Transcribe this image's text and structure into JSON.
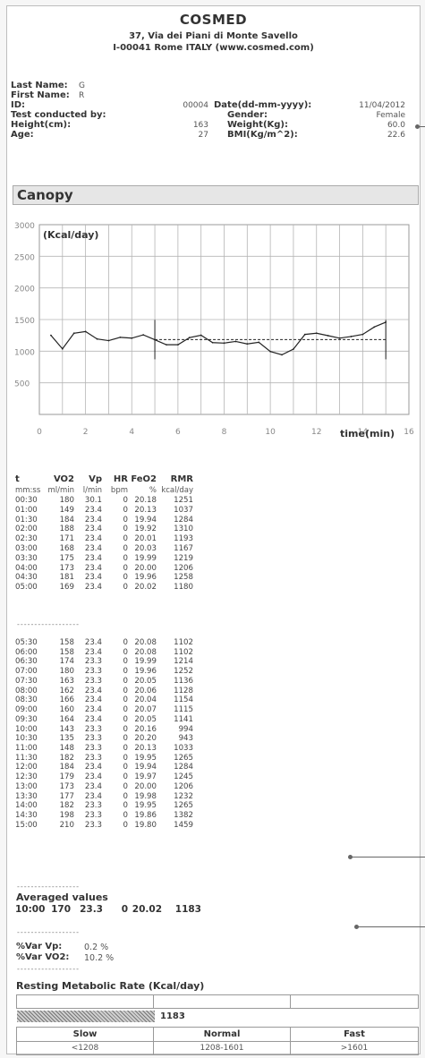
{
  "header": {
    "brand": "COSMED",
    "address_line1": "37, Via dei Piani di Monte Savello",
    "address_line2": "I-00041 Rome ITALY (www.cosmed.com)"
  },
  "patient": {
    "last_name_label": "Last Name:",
    "last_name": "G",
    "first_name_label": "First Name:",
    "first_name": "R",
    "id_label": "ID:",
    "id": "00004",
    "test_by_label": "Test conducted by:",
    "height_label": "Height(cm):",
    "height": "163",
    "age_label": "Age:",
    "age": "27",
    "date_label": "Date(dd-mm-yyyy):",
    "date": "11/04/2012",
    "gender_label": "Gender:",
    "gender": "Female",
    "weight_label": "Weight(Kg):",
    "weight": "60.0",
    "bmi_label": "BMI(Kg/m^2):",
    "bmi": "22.6"
  },
  "section_title": "Canopy",
  "chart_data": {
    "type": "line",
    "ylabel": "(Kcal/day)",
    "xlabel": "time(min)",
    "ylim": [
      0,
      3000
    ],
    "xlim": [
      0,
      16
    ],
    "yticks": [
      "3000",
      "2500",
      "2000",
      "1500",
      "1000",
      "500"
    ],
    "xticks": [
      "0",
      "2",
      "4",
      "6",
      "8",
      "10",
      "12",
      "14",
      "16"
    ],
    "grid": true,
    "series": [
      {
        "x": [
          0.5,
          1,
          1.5,
          2,
          2.5,
          3,
          3.5,
          4,
          4.5,
          5,
          5.5,
          6,
          6.5,
          7,
          7.5,
          8,
          8.5,
          9,
          9.5,
          10,
          10.5,
          11,
          11.5,
          12,
          12.5,
          13,
          13.5,
          14,
          14.5,
          15
        ],
        "values": [
          1251,
          1037,
          1284,
          1310,
          1193,
          1167,
          1219,
          1206,
          1258,
          1180,
          1102,
          1102,
          1214,
          1252,
          1136,
          1128,
          1154,
          1115,
          1141,
          994,
          943,
          1033,
          1265,
          1284,
          1245,
          1206,
          1232,
          1265,
          1382,
          1459
        ]
      }
    ],
    "average_line": {
      "x_start": 5,
      "x_end": 15,
      "value": 1183
    }
  },
  "table": {
    "headers": [
      "t",
      "VO2",
      "Vp",
      "HR",
      "FeO2",
      "RMR"
    ],
    "units": [
      "mm:ss",
      "ml/min",
      "l/min",
      "bpm",
      "%",
      "kcal/day"
    ],
    "separator": "------------------",
    "rows": [
      [
        "00:30",
        "180",
        "30.1",
        "0",
        "20.18",
        "1251"
      ],
      [
        "01:00",
        "149",
        "23.4",
        "0",
        "20.13",
        "1037"
      ],
      [
        "01:30",
        "184",
        "23.4",
        "0",
        "19.94",
        "1284"
      ],
      [
        "02:00",
        "188",
        "23.4",
        "0",
        "19.92",
        "1310"
      ],
      [
        "02:30",
        "171",
        "23.4",
        "0",
        "20.01",
        "1193"
      ],
      [
        "03:00",
        "168",
        "23.4",
        "0",
        "20.03",
        "1167"
      ],
      [
        "03:30",
        "175",
        "23.4",
        "0",
        "19.99",
        "1219"
      ],
      [
        "04:00",
        "173",
        "23.4",
        "0",
        "20.00",
        "1206"
      ],
      [
        "04:30",
        "181",
        "23.4",
        "0",
        "19.96",
        "1258"
      ],
      [
        "05:00",
        "169",
        "23.4",
        "0",
        "20.02",
        "1180"
      ],
      [
        "05:30",
        "158",
        "23.4",
        "0",
        "20.08",
        "1102"
      ],
      [
        "06:00",
        "158",
        "23.4",
        "0",
        "20.08",
        "1102"
      ],
      [
        "06:30",
        "174",
        "23.3",
        "0",
        "19.99",
        "1214"
      ],
      [
        "07:00",
        "180",
        "23.3",
        "0",
        "19.96",
        "1252"
      ],
      [
        "07:30",
        "163",
        "23.3",
        "0",
        "20.05",
        "1136"
      ],
      [
        "08:00",
        "162",
        "23.4",
        "0",
        "20.06",
        "1128"
      ],
      [
        "08:30",
        "166",
        "23.4",
        "0",
        "20.04",
        "1154"
      ],
      [
        "09:00",
        "160",
        "23.4",
        "0",
        "20.07",
        "1115"
      ],
      [
        "09:30",
        "164",
        "23.4",
        "0",
        "20.05",
        "1141"
      ],
      [
        "10:00",
        "143",
        "23.3",
        "0",
        "20.16",
        "994"
      ],
      [
        "10:30",
        "135",
        "23.3",
        "0",
        "20.20",
        "943"
      ],
      [
        "11:00",
        "148",
        "23.3",
        "0",
        "20.13",
        "1033"
      ],
      [
        "11:30",
        "182",
        "23.3",
        "0",
        "19.95",
        "1265"
      ],
      [
        "12:00",
        "184",
        "23.4",
        "0",
        "19.94",
        "1284"
      ],
      [
        "12:30",
        "179",
        "23.4",
        "0",
        "19.97",
        "1245"
      ],
      [
        "13:00",
        "173",
        "23.4",
        "0",
        "20.00",
        "1206"
      ],
      [
        "13:30",
        "177",
        "23.4",
        "0",
        "19.98",
        "1232"
      ],
      [
        "14:00",
        "182",
        "23.3",
        "0",
        "19.95",
        "1265"
      ],
      [
        "14:30",
        "198",
        "23.3",
        "0",
        "19.86",
        "1382"
      ],
      [
        "15:00",
        "210",
        "23.3",
        "0",
        "19.80",
        "1459"
      ]
    ]
  },
  "averaged": {
    "label": "Averaged values",
    "values": [
      "10:00",
      "170",
      "23.3",
      "0",
      "20.02",
      "1183"
    ]
  },
  "variation": {
    "vp_label": "%Var Vp:",
    "vp": "0.2 %",
    "vo2_label": "%Var VO2:",
    "vo2": "10.2 %"
  },
  "rmr_summary": {
    "title": "Resting Metabolic Rate (Kcal/day)",
    "value": "1183",
    "fraction": 0.343,
    "categories": [
      "Slow",
      "Normal",
      "Fast"
    ],
    "ranges": [
      "<1208",
      "1208-1601",
      ">1601"
    ]
  }
}
